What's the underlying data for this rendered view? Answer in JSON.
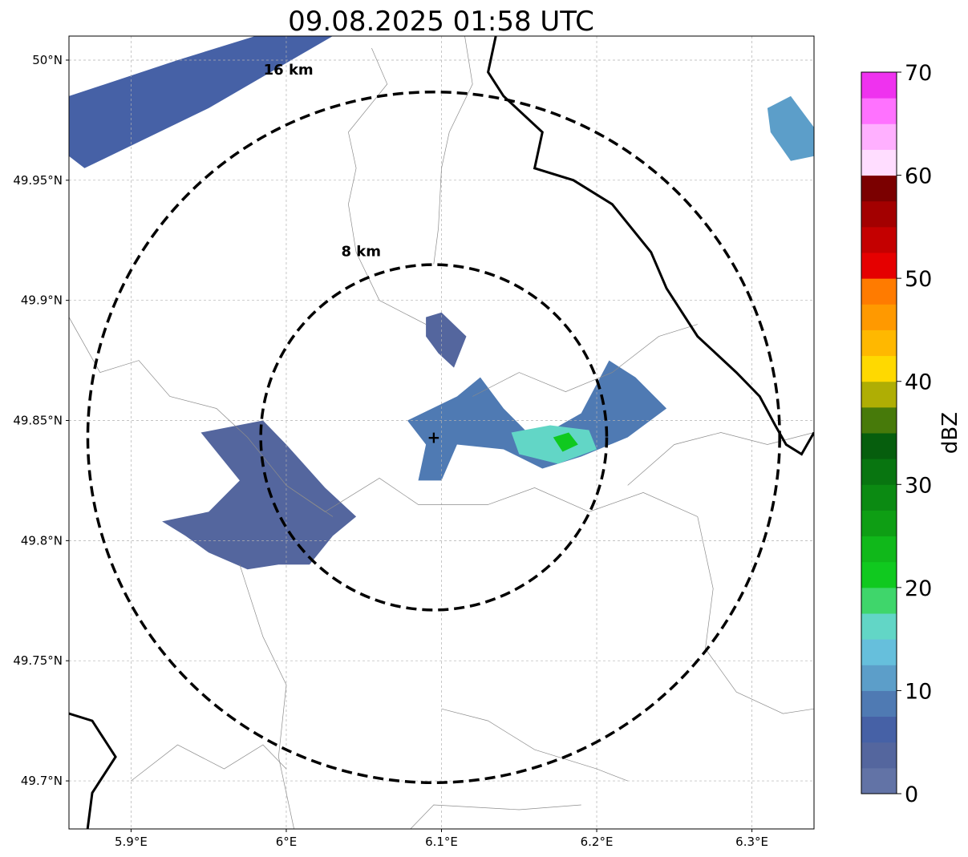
{
  "title": "09.08.2025 01:58 UTC",
  "map": {
    "lon_range": [
      5.86,
      6.34
    ],
    "lat_range": [
      49.68,
      50.01
    ],
    "center": {
      "lon": 6.095,
      "lat": 49.843
    },
    "gridlines": true,
    "x_ticks": [
      {
        "value": 5.9,
        "label": "5.9°E"
      },
      {
        "value": 6.0,
        "label": "6°E"
      },
      {
        "value": 6.1,
        "label": "6.1°E"
      },
      {
        "value": 6.2,
        "label": "6.2°E"
      },
      {
        "value": 6.3,
        "label": "6.3°E"
      }
    ],
    "y_ticks": [
      {
        "value": 50.0,
        "label": "50°N"
      },
      {
        "value": 49.95,
        "label": "49.95°N"
      },
      {
        "value": 49.9,
        "label": "49.9°N"
      },
      {
        "value": 49.85,
        "label": "49.85°N"
      },
      {
        "value": 49.8,
        "label": "49.8°N"
      },
      {
        "value": 49.75,
        "label": "49.75°N"
      },
      {
        "value": 49.7,
        "label": "49.7°N"
      }
    ],
    "range_rings": [
      {
        "radius_km": 8,
        "label": "8 km"
      },
      {
        "radius_km": 16,
        "label": "16 km"
      }
    ]
  },
  "colorbar": {
    "label": "dBZ",
    "min": 0,
    "max": 70,
    "ticks": [
      {
        "value": 0,
        "label": "0"
      },
      {
        "value": 10,
        "label": "10"
      },
      {
        "value": 20,
        "label": "20"
      },
      {
        "value": 30,
        "label": "30"
      },
      {
        "value": 40,
        "label": "40"
      },
      {
        "value": 50,
        "label": "50"
      },
      {
        "value": 60,
        "label": "60"
      },
      {
        "value": 70,
        "label": "70"
      }
    ],
    "colors": [
      "#6273a6",
      "#54669e",
      "#4661a6",
      "#4f7ab3",
      "#5c9ec9",
      "#66bfdc",
      "#62d6c6",
      "#3fd66b",
      "#10c91f",
      "#10b81a",
      "#0e9e14",
      "#0b8a12",
      "#087510",
      "#065e0d",
      "#477a0a",
      "#afae04",
      "#ffd900",
      "#ffb800",
      "#ff9900",
      "#ff7b00",
      "#e50000",
      "#c40000",
      "#a30000",
      "#7b0000",
      "#ffddff",
      "#ffb0ff",
      "#ff72ff",
      "#ef32ef"
    ]
  },
  "radar_echoes": [
    {
      "name": "northwest-band",
      "dbz": 5,
      "points": [
        [
          5.86,
          49.985
        ],
        [
          5.93,
          50.0
        ],
        [
          5.98,
          50.01
        ],
        [
          6.03,
          50.01
        ],
        [
          5.95,
          49.98
        ],
        [
          5.87,
          49.955
        ],
        [
          5.86,
          49.96
        ]
      ]
    },
    {
      "name": "northeast-corner",
      "dbz": 10,
      "points": [
        [
          6.31,
          49.98
        ],
        [
          6.325,
          49.985
        ],
        [
          6.34,
          49.972
        ],
        [
          6.34,
          49.96
        ],
        [
          6.325,
          49.958
        ],
        [
          6.312,
          49.97
        ]
      ]
    },
    {
      "name": "north-small-cell",
      "dbz": 4,
      "points": [
        [
          6.09,
          49.893
        ],
        [
          6.1,
          49.895
        ],
        [
          6.116,
          49.885
        ],
        [
          6.108,
          49.872
        ],
        [
          6.098,
          49.878
        ],
        [
          6.09,
          49.885
        ]
      ]
    },
    {
      "name": "central-line",
      "dbz": 8,
      "points": [
        [
          6.078,
          49.85
        ],
        [
          6.11,
          49.86
        ],
        [
          6.125,
          49.868
        ],
        [
          6.14,
          49.855
        ],
        [
          6.16,
          49.842
        ],
        [
          6.19,
          49.853
        ],
        [
          6.208,
          49.875
        ],
        [
          6.225,
          49.868
        ],
        [
          6.245,
          49.855
        ],
        [
          6.22,
          49.843
        ],
        [
          6.19,
          49.835
        ],
        [
          6.165,
          49.83
        ],
        [
          6.14,
          49.838
        ],
        [
          6.11,
          49.84
        ],
        [
          6.1,
          49.825
        ],
        [
          6.085,
          49.825
        ],
        [
          6.09,
          49.84
        ]
      ]
    },
    {
      "name": "central-core",
      "dbz": 16,
      "points": [
        [
          6.145,
          49.845
        ],
        [
          6.17,
          49.848
        ],
        [
          6.195,
          49.846
        ],
        [
          6.2,
          49.838
        ],
        [
          6.175,
          49.832
        ],
        [
          6.15,
          49.836
        ]
      ]
    },
    {
      "name": "central-peak",
      "dbz": 21,
      "points": [
        [
          6.172,
          49.843
        ],
        [
          6.182,
          49.845
        ],
        [
          6.188,
          49.84
        ],
        [
          6.178,
          49.837
        ]
      ]
    },
    {
      "name": "west-cluster",
      "dbz": 4,
      "points": [
        [
          5.945,
          49.845
        ],
        [
          5.985,
          49.85
        ],
        [
          6.0,
          49.84
        ],
        [
          6.025,
          49.822
        ],
        [
          6.045,
          49.81
        ],
        [
          6.03,
          49.802
        ],
        [
          6.015,
          49.79
        ],
        [
          5.995,
          49.79
        ],
        [
          5.975,
          49.788
        ],
        [
          5.95,
          49.795
        ],
        [
          5.935,
          49.802
        ],
        [
          5.92,
          49.808
        ],
        [
          5.95,
          49.812
        ],
        [
          5.97,
          49.825
        ]
      ]
    }
  ],
  "geo_lines": {
    "national_borders": [
      {
        "name": "border-northeast",
        "points": [
          [
            6.135,
            50.01
          ],
          [
            6.13,
            49.995
          ],
          [
            6.14,
            49.985
          ],
          [
            6.165,
            49.97
          ],
          [
            6.16,
            49.955
          ],
          [
            6.185,
            49.95
          ],
          [
            6.21,
            49.94
          ],
          [
            6.235,
            49.92
          ],
          [
            6.245,
            49.905
          ],
          [
            6.265,
            49.885
          ],
          [
            6.29,
            49.87
          ],
          [
            6.305,
            49.86
          ],
          [
            6.315,
            49.848
          ],
          [
            6.322,
            49.84
          ],
          [
            6.332,
            49.836
          ],
          [
            6.34,
            49.845
          ]
        ]
      },
      {
        "name": "border-southwest",
        "points": [
          [
            5.86,
            49.728
          ],
          [
            5.875,
            49.725
          ],
          [
            5.89,
            49.71
          ],
          [
            5.875,
            49.695
          ],
          [
            5.872,
            49.68
          ]
        ]
      }
    ],
    "admin_lines": [
      {
        "name": "admin-line-1",
        "points": [
          [
            6.115,
            50.01
          ],
          [
            6.12,
            49.99
          ],
          [
            6.105,
            49.97
          ],
          [
            6.1,
            49.955
          ],
          [
            6.098,
            49.93
          ],
          [
            6.095,
            49.915
          ]
        ]
      },
      {
        "name": "admin-line-2",
        "points": [
          [
            6.055,
            50.005
          ],
          [
            6.065,
            49.99
          ],
          [
            6.04,
            49.97
          ],
          [
            6.045,
            49.955
          ],
          [
            6.04,
            49.94
          ],
          [
            6.045,
            49.92
          ],
          [
            6.06,
            49.9
          ],
          [
            6.09,
            49.89
          ]
        ]
      },
      {
        "name": "admin-line-3",
        "points": [
          [
            5.86,
            49.893
          ],
          [
            5.88,
            49.87
          ],
          [
            5.905,
            49.875
          ],
          [
            5.925,
            49.86
          ],
          [
            5.955,
            49.855
          ],
          [
            5.975,
            49.843
          ],
          [
            6.0,
            49.823
          ],
          [
            6.03,
            49.81
          ]
        ]
      },
      {
        "name": "admin-line-4",
        "points": [
          [
            6.0,
            49.823
          ],
          [
            6.025,
            49.812
          ],
          [
            6.06,
            49.826
          ],
          [
            6.085,
            49.815
          ],
          [
            6.13,
            49.815
          ],
          [
            6.16,
            49.822
          ],
          [
            6.195,
            49.812
          ],
          [
            6.23,
            49.82
          ],
          [
            6.265,
            49.81
          ]
        ]
      },
      {
        "name": "admin-line-5",
        "points": [
          [
            6.265,
            49.81
          ],
          [
            6.275,
            49.78
          ],
          [
            6.27,
            49.755
          ],
          [
            6.29,
            49.737
          ],
          [
            6.32,
            49.728
          ],
          [
            6.34,
            49.73
          ]
        ]
      },
      {
        "name": "admin-line-6",
        "points": [
          [
            5.97,
            49.79
          ],
          [
            5.985,
            49.76
          ],
          [
            6.0,
            49.74
          ],
          [
            5.995,
            49.71
          ],
          [
            6.005,
            49.68
          ]
        ]
      },
      {
        "name": "admin-line-7",
        "points": [
          [
            5.9,
            49.7
          ],
          [
            5.93,
            49.715
          ],
          [
            5.96,
            49.705
          ],
          [
            5.985,
            49.715
          ],
          [
            6.0,
            49.705
          ]
        ]
      },
      {
        "name": "admin-line-8",
        "points": [
          [
            6.1,
            49.73
          ],
          [
            6.13,
            49.725
          ],
          [
            6.16,
            49.713
          ],
          [
            6.2,
            49.705
          ],
          [
            6.22,
            49.7
          ]
        ]
      },
      {
        "name": "admin-line-9",
        "points": [
          [
            6.08,
            49.68
          ],
          [
            6.095,
            49.69
          ],
          [
            6.15,
            49.688
          ],
          [
            6.19,
            49.69
          ]
        ]
      },
      {
        "name": "admin-line-10",
        "points": [
          [
            6.12,
            49.86
          ],
          [
            6.15,
            49.87
          ],
          [
            6.18,
            49.862
          ],
          [
            6.21,
            49.87
          ],
          [
            6.24,
            49.885
          ],
          [
            6.265,
            49.89
          ]
        ]
      },
      {
        "name": "admin-line-11",
        "points": [
          [
            6.22,
            49.823
          ],
          [
            6.25,
            49.84
          ],
          [
            6.28,
            49.845
          ],
          [
            6.31,
            49.84
          ],
          [
            6.34,
            49.845
          ]
        ]
      }
    ]
  }
}
